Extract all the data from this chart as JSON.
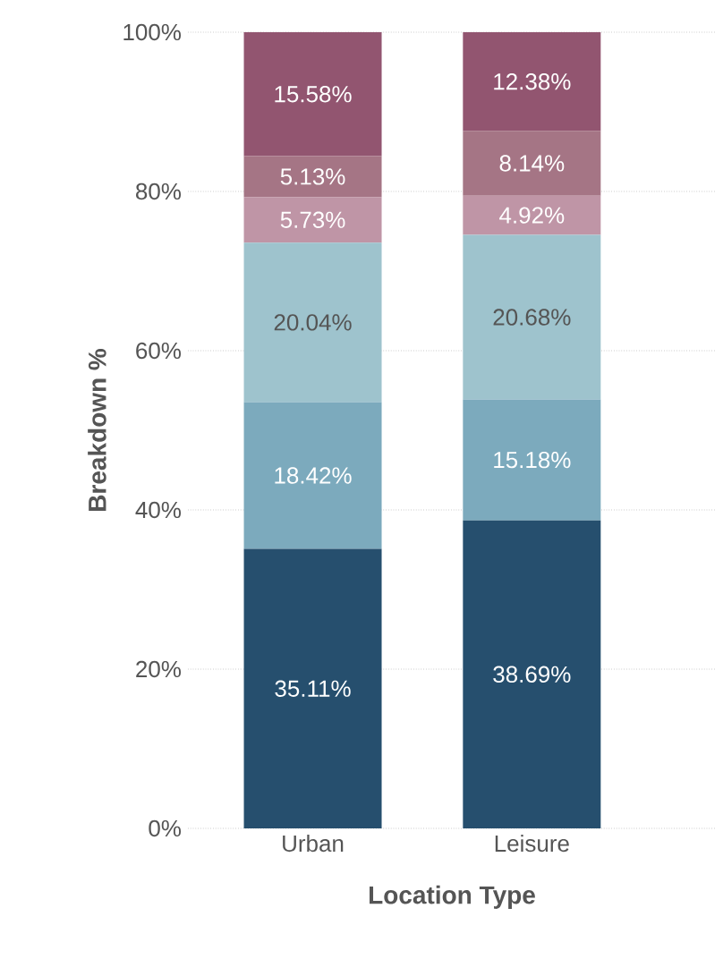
{
  "chart_data": {
    "type": "bar",
    "stacked": true,
    "xlabel": "Location Type",
    "ylabel": "Breakdown %",
    "categories": [
      "Urban",
      "Leisure"
    ],
    "series": [
      {
        "color": "#264f6e",
        "values": [
          35.11,
          38.69
        ],
        "value_labels": [
          "35.11%",
          "38.69%"
        ]
      },
      {
        "color": "#7caabd",
        "values": [
          18.42,
          15.18
        ],
        "value_labels": [
          "18.42%",
          "15.18%"
        ]
      },
      {
        "color": "#9ec3cd",
        "values": [
          20.04,
          20.68
        ],
        "value_labels": [
          "20.04%",
          "20.68%"
        ]
      },
      {
        "color": "#bf95a6",
        "values": [
          5.73,
          4.92
        ],
        "value_labels": [
          "5.73%",
          "4.92%"
        ]
      },
      {
        "color": "#a57585",
        "values": [
          5.13,
          8.14
        ],
        "value_labels": [
          "5.13%",
          "8.14%"
        ]
      },
      {
        "color": "#925570",
        "values": [
          15.58,
          12.38
        ],
        "value_labels": [
          "15.58%",
          "12.38%"
        ]
      }
    ],
    "ylim": [
      0,
      100
    ],
    "yticks": [
      {
        "value": 0,
        "label": "0%"
      },
      {
        "value": 20,
        "label": "20%"
      },
      {
        "value": 40,
        "label": "40%"
      },
      {
        "value": 60,
        "label": "60%"
      },
      {
        "value": 80,
        "label": "80%"
      },
      {
        "value": 100,
        "label": "100%"
      }
    ],
    "grid": "y"
  }
}
